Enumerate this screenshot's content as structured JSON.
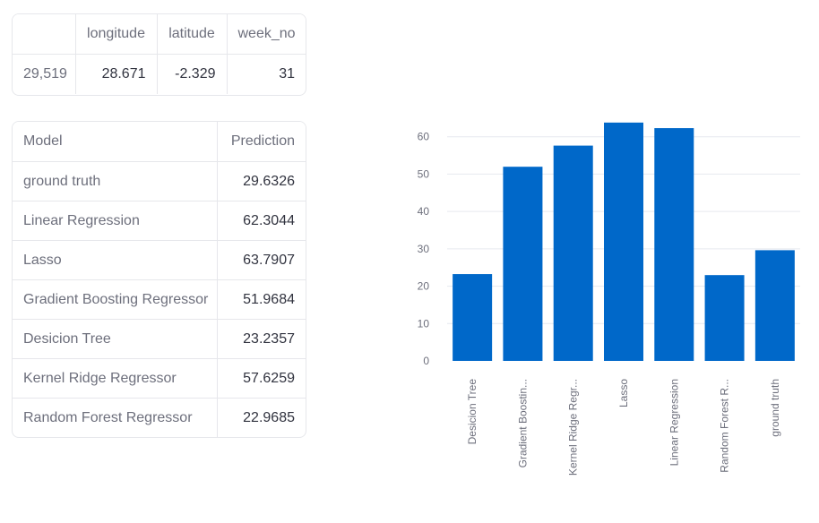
{
  "input_table": {
    "columns": [
      "",
      "longitude",
      "latitude",
      "week_no"
    ],
    "row": {
      "index": "29,519",
      "longitude": "28.671",
      "latitude": "-2.329",
      "week_no": "31"
    }
  },
  "prediction_table": {
    "columns": [
      "Model",
      "Prediction"
    ],
    "rows": [
      {
        "model": "ground truth",
        "prediction": "29.6326"
      },
      {
        "model": "Linear Regression",
        "prediction": "62.3044"
      },
      {
        "model": "Lasso",
        "prediction": "63.7907"
      },
      {
        "model": "Gradient Boosting Regressor",
        "prediction": "51.9684"
      },
      {
        "model": "Desicion Tree",
        "prediction": "23.2357"
      },
      {
        "model": "Kernel Ridge Regressor",
        "prediction": "57.6259"
      },
      {
        "model": "Random Forest Regressor",
        "prediction": "22.9685"
      }
    ]
  },
  "chart_data": {
    "type": "bar",
    "categories": [
      "Desicion Tree",
      "Gradient Boostin...",
      "Kernel Ridge Regr...",
      "Lasso",
      "Linear Regression",
      "Random Forest R...",
      "ground truth"
    ],
    "values": [
      23.2357,
      51.9684,
      57.6259,
      63.7907,
      62.3044,
      22.9685,
      29.6326
    ],
    "yticks": [
      0,
      10,
      20,
      30,
      40,
      50,
      60
    ],
    "ylim": [
      0,
      64
    ],
    "grid": true,
    "bar_color": "#0068c9",
    "title": "",
    "xlabel": "",
    "ylabel": ""
  }
}
